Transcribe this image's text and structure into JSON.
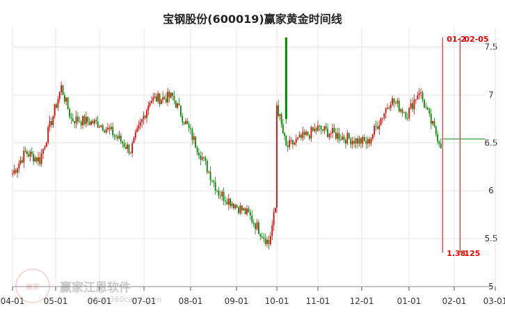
{
  "header": {
    "title": "宝钢股份(600019)赢家黄金时间线"
  },
  "watermark": {
    "brand": "赢家江恩软件",
    "url": "www.360cann.com"
  },
  "colors": {
    "up": "#e60000",
    "down": "#008800",
    "marker": "#e60000",
    "level": "#008800",
    "grid": "#e6e6e6"
  },
  "chart_data": {
    "type": "candlestick",
    "title": "宝钢股份(600019)赢家黄金时间线",
    "x_axis": {
      "tick_labels": [
        "04-01",
        "05-01",
        "06-01",
        "07-01",
        "08-01",
        "09-01",
        "10-01",
        "11-01",
        "12-01",
        "01-01",
        "02-01",
        "03-01"
      ]
    },
    "y_axis": {
      "tick_labels": [
        "5",
        "5.5",
        "6",
        "6.5",
        "7",
        "7.5"
      ],
      "ylim": [
        5,
        7.7
      ],
      "position": "right"
    },
    "grid": true,
    "segments": [
      {
        "from": "04-01",
        "to": "04-10",
        "start": 6.18,
        "end": 6.4
      },
      {
        "from": "04-10",
        "to": "04-20",
        "start": 6.4,
        "end": 6.32
      },
      {
        "from": "04-20",
        "to": "05-05",
        "start": 6.32,
        "end": 7.08
      },
      {
        "from": "05-05",
        "to": "05-12",
        "start": 7.08,
        "end": 6.75
      },
      {
        "from": "05-12",
        "to": "06-01",
        "start": 6.75,
        "end": 6.7
      },
      {
        "from": "06-01",
        "to": "06-10",
        "start": 6.7,
        "end": 6.6
      },
      {
        "from": "06-10",
        "to": "06-22",
        "start": 6.6,
        "end": 6.42
      },
      {
        "from": "06-22",
        "to": "07-05",
        "start": 6.42,
        "end": 6.95
      },
      {
        "from": "07-05",
        "to": "07-20",
        "start": 6.95,
        "end": 6.98
      },
      {
        "from": "07-20",
        "to": "08-01",
        "start": 6.98,
        "end": 6.6
      },
      {
        "from": "08-01",
        "to": "08-20",
        "start": 6.6,
        "end": 5.98
      },
      {
        "from": "08-20",
        "to": "09-10",
        "start": 5.98,
        "end": 5.75
      },
      {
        "from": "09-10",
        "to": "09-25",
        "start": 5.75,
        "end": 5.45
      },
      {
        "from": "09-25",
        "to": "09-30",
        "start": 5.45,
        "end": 5.82
      },
      {
        "from": "09-30",
        "to": "10-01",
        "start": 5.82,
        "end": 6.9
      },
      {
        "from": "10-01",
        "to": "10-08",
        "start": 6.9,
        "end": 6.45
      },
      {
        "from": "10-08",
        "to": "11-01",
        "start": 6.45,
        "end": 6.65
      },
      {
        "from": "11-01",
        "to": "11-20",
        "start": 6.65,
        "end": 6.55
      },
      {
        "from": "11-20",
        "to": "12-05",
        "start": 6.55,
        "end": 6.5
      },
      {
        "from": "12-05",
        "to": "12-20",
        "start": 6.5,
        "end": 6.95
      },
      {
        "from": "12-20",
        "to": "12-31",
        "start": 6.95,
        "end": 6.8
      },
      {
        "from": "12-31",
        "to": "01-08",
        "start": 6.8,
        "end": 7.05
      },
      {
        "from": "01-08",
        "to": "01-15",
        "start": 7.05,
        "end": 6.75
      },
      {
        "from": "01-15",
        "to": "01-24",
        "start": 6.75,
        "end": 6.45
      }
    ],
    "spikes": [
      {
        "date": "10-08",
        "open": 6.75,
        "close": 7.6,
        "low": 6.7,
        "high": 7.6
      }
    ],
    "current_level": 6.54,
    "markers": [
      {
        "date": "01-24",
        "top_label": "01-2",
        "bottom_label": "1.38"
      },
      {
        "date": "02-05",
        "top_label": "02-05",
        "bottom_label": "125"
      }
    ]
  }
}
